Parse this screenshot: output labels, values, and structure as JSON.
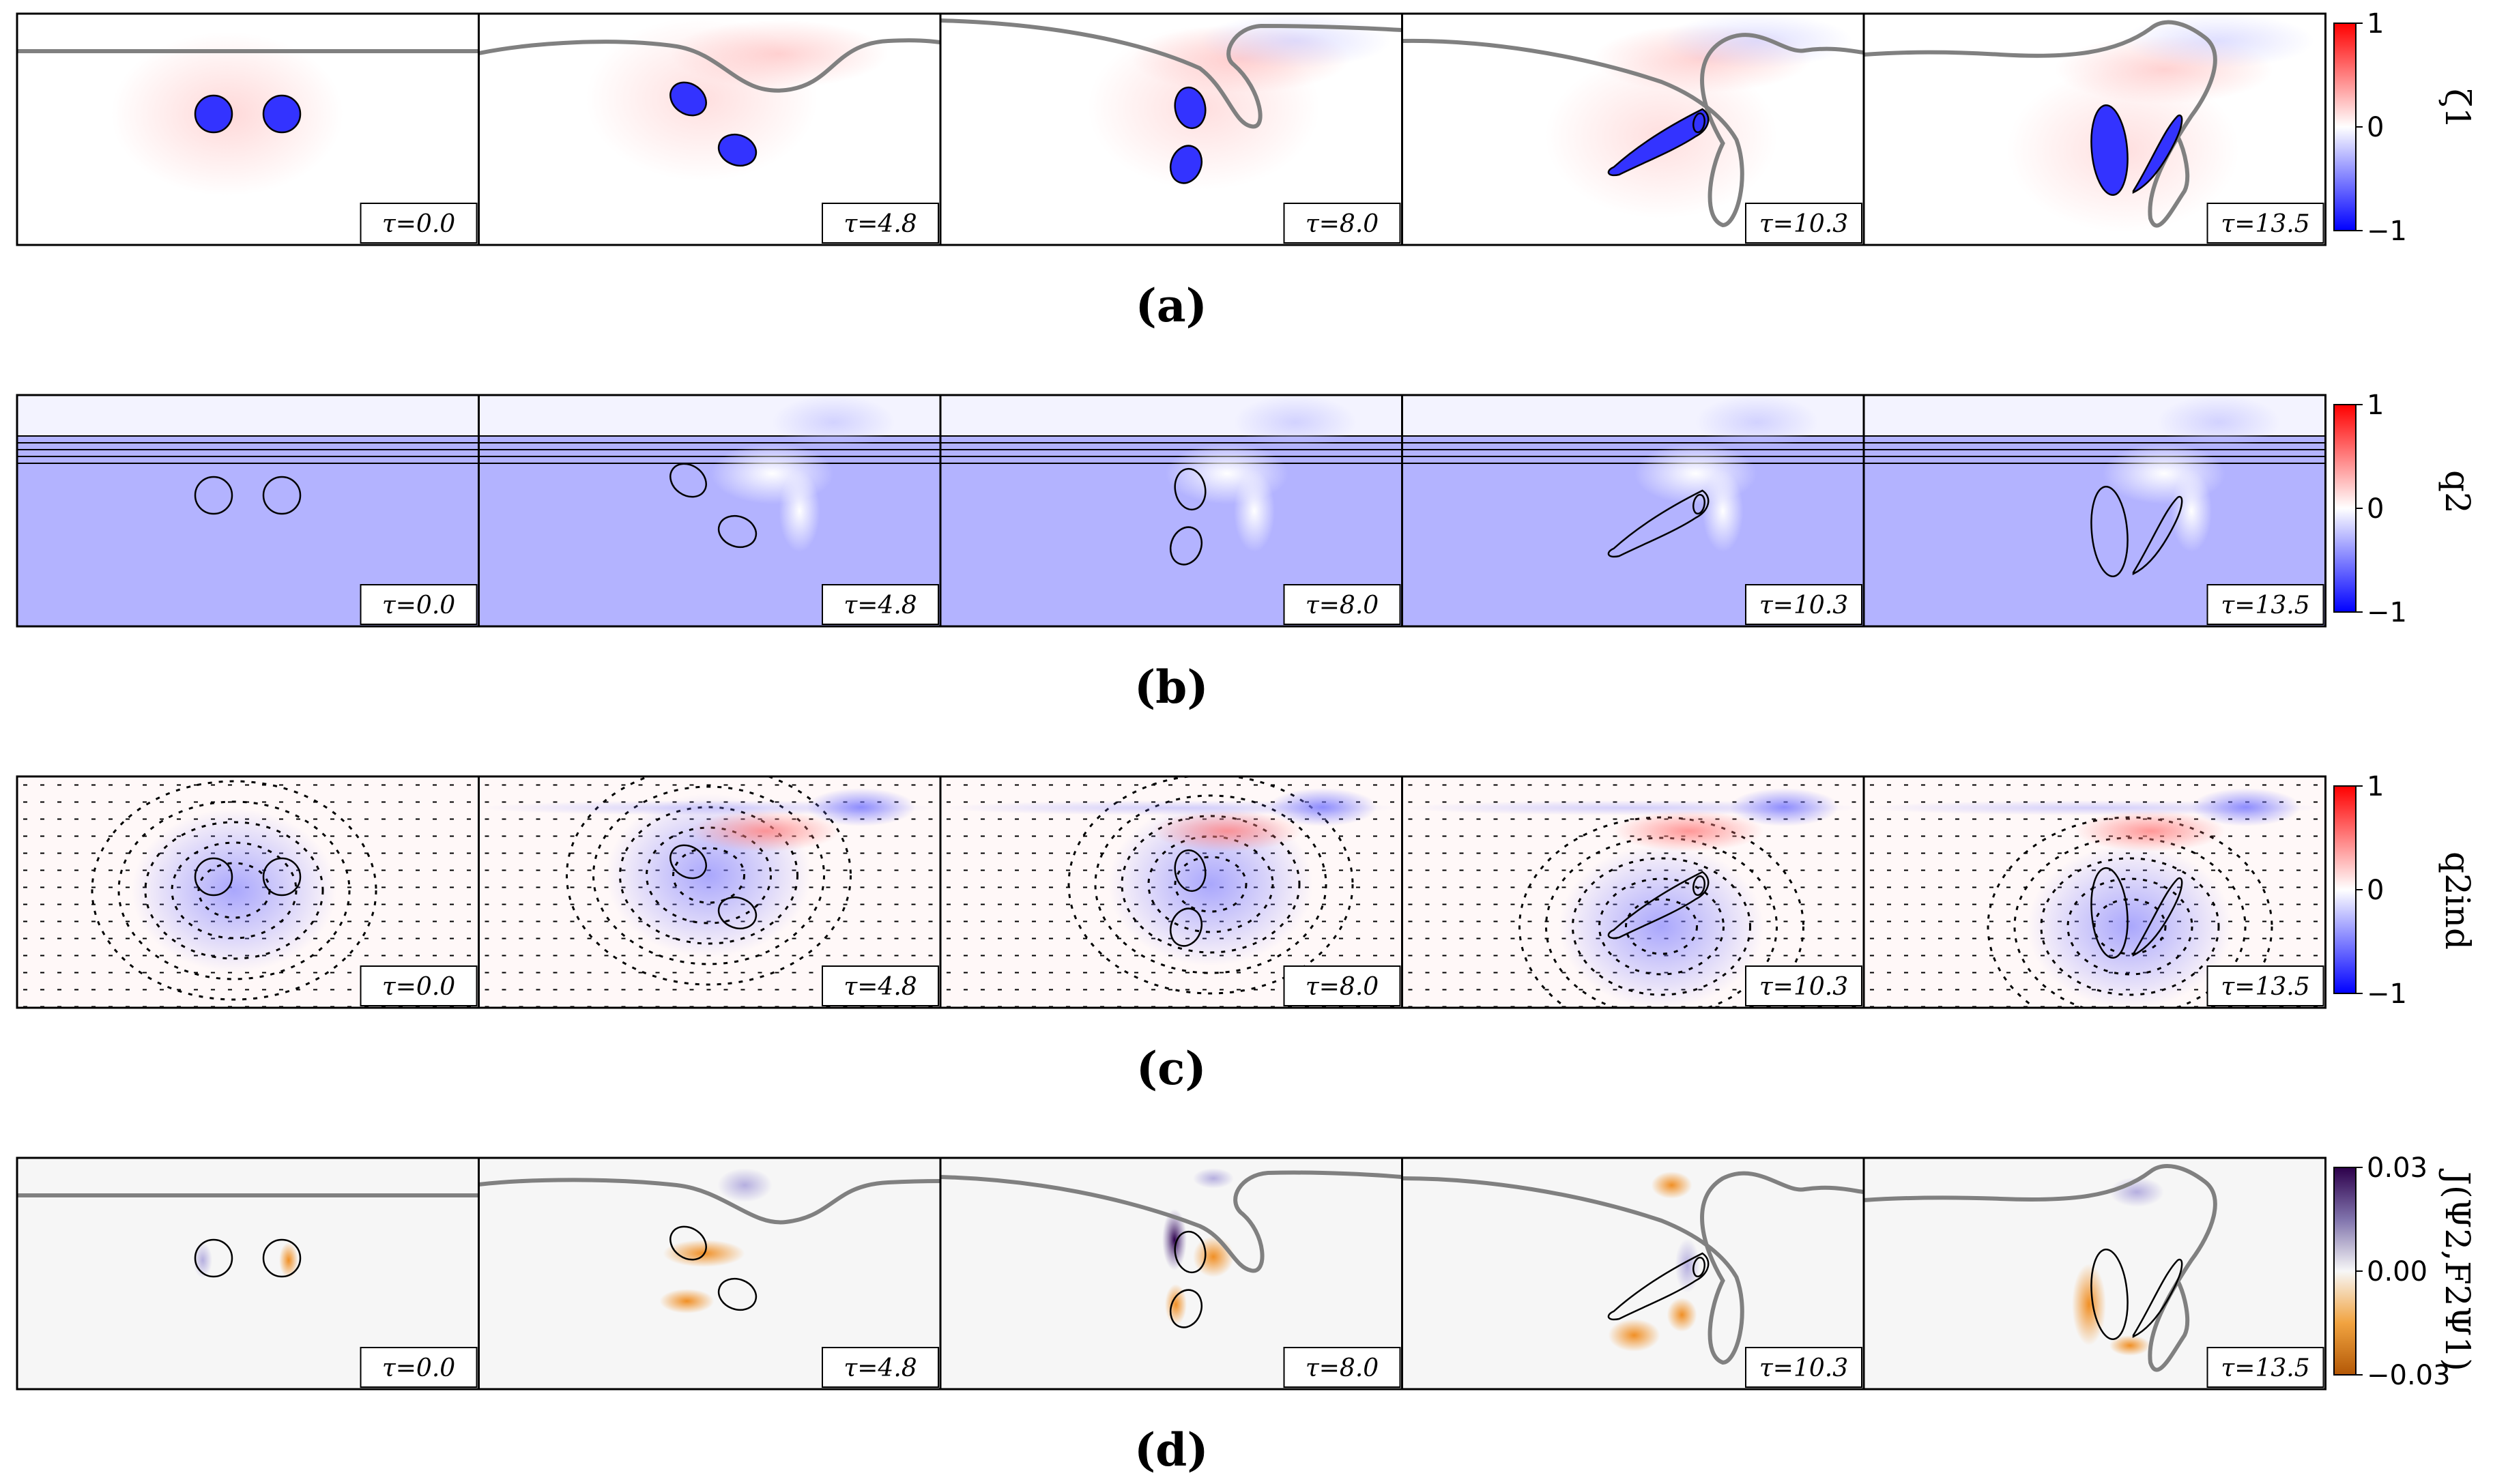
{
  "time_labels": [
    "τ=0.0",
    "τ=4.8",
    "τ=8.0",
    "τ=10.3",
    "τ=13.5"
  ],
  "rows": [
    {
      "label": "(a)",
      "field": "ζ1",
      "colorbar": {
        "max": "1",
        "mid": "0",
        "min": "−1",
        "colormap": [
          "#ff0000",
          "#ffffff",
          "#0000ff"
        ]
      }
    },
    {
      "label": "(b)",
      "field": "q2",
      "colorbar": {
        "max": "1",
        "mid": "0",
        "min": "−1",
        "colormap": [
          "#ff0000",
          "#ffffff",
          "#0000ff"
        ]
      }
    },
    {
      "label": "(c)",
      "field": "q2ind",
      "colorbar": {
        "max": "1",
        "mid": "0",
        "min": "−1",
        "colormap": [
          "#ff0000",
          "#ffffff",
          "#0000ff"
        ]
      }
    },
    {
      "label": "(d)",
      "field": "J(Ψ2,F2Ψ1)",
      "colorbar": {
        "max": "0.03",
        "mid": "0.00",
        "min": "−0.03",
        "colormap": [
          "#2d004b",
          "#f7f7f7",
          "#b35806"
        ]
      }
    }
  ],
  "colors": {
    "vortex": "#3333ff",
    "interface": "#808080",
    "layer_fill": "#b3b3ff"
  }
}
